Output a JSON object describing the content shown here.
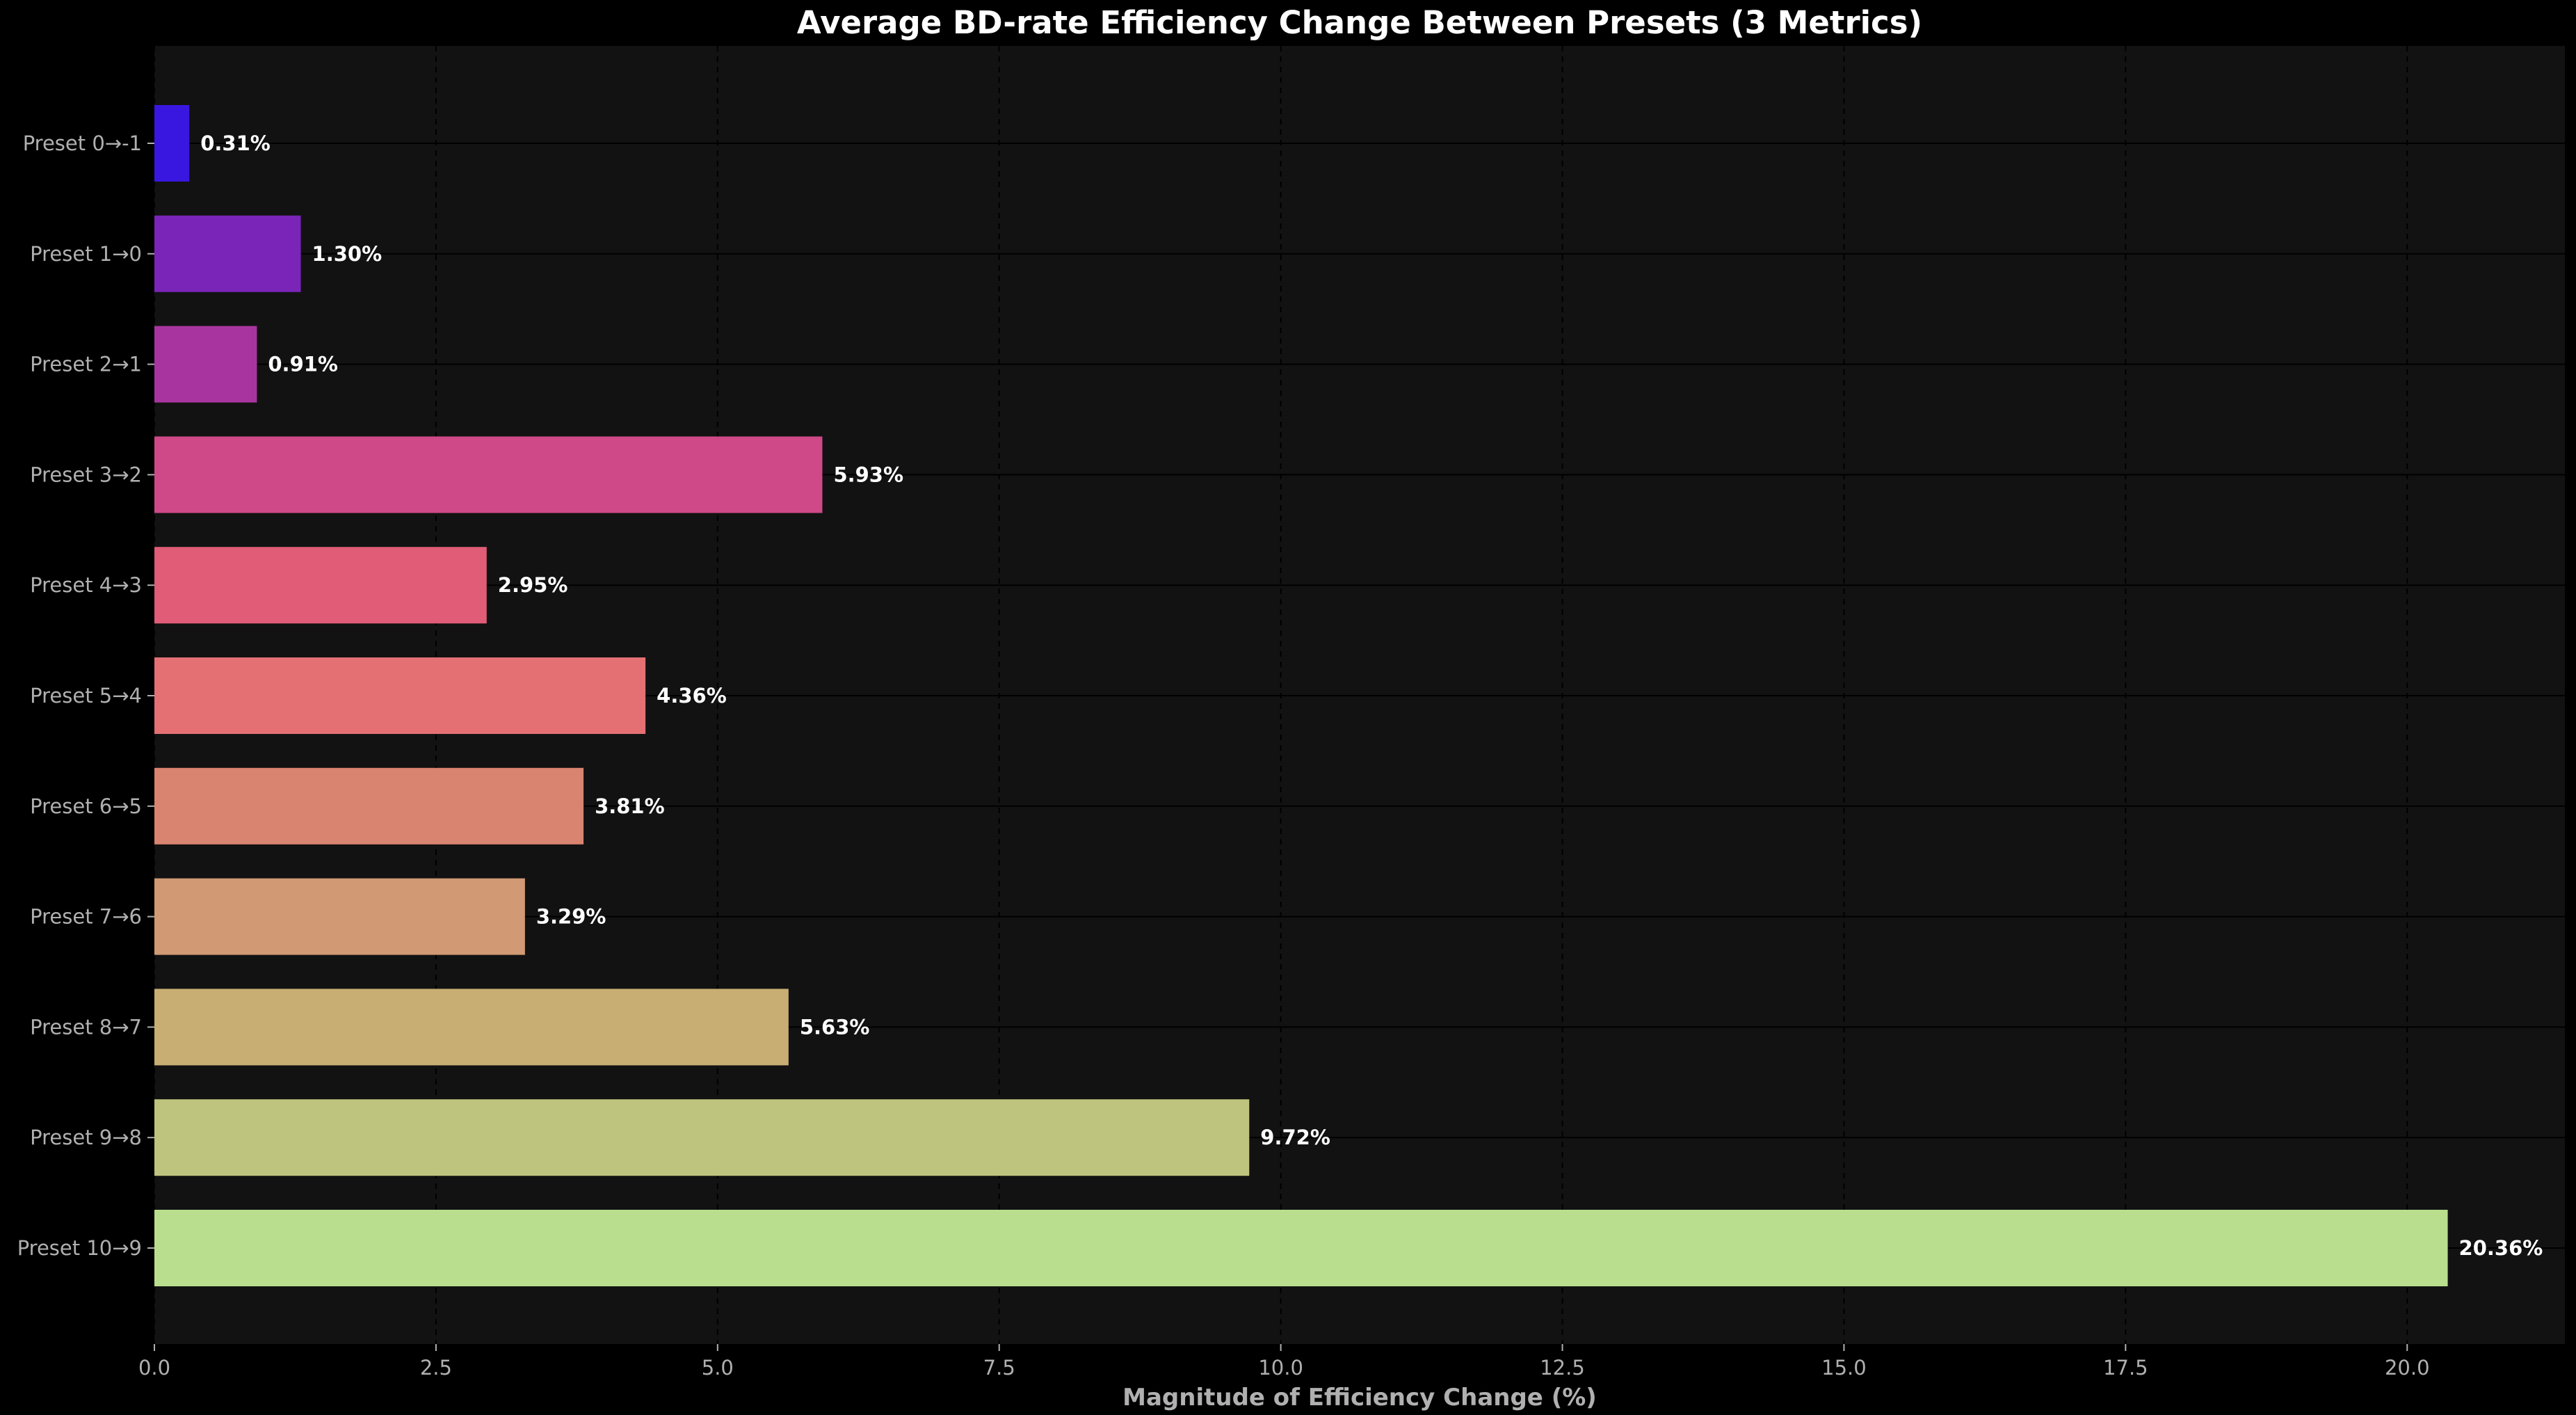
{
  "chart_data": {
    "type": "bar",
    "orientation": "horizontal",
    "title": "Average BD-rate Efficiency Change Between Presets (3 Metrics)",
    "xlabel": "Magnitude of Efficiency Change (%)",
    "ylabel": "",
    "xlim": [
      0,
      21.4
    ],
    "xticks": [
      0.0,
      2.5,
      5.0,
      7.5,
      10.0,
      12.5,
      15.0,
      17.5,
      20.0
    ],
    "xtick_labels": [
      "0.0",
      "2.5",
      "5.0",
      "7.5",
      "10.0",
      "12.5",
      "15.0",
      "17.5",
      "20.0"
    ],
    "categories": [
      "Preset 0→-1",
      "Preset 1→0",
      "Preset 2→1",
      "Preset 3→2",
      "Preset 4→3",
      "Preset 5→4",
      "Preset 6→5",
      "Preset 7→6",
      "Preset 8→7",
      "Preset 9→8",
      "Preset 10→9"
    ],
    "values": [
      0.31,
      1.3,
      0.91,
      5.93,
      2.95,
      4.36,
      3.81,
      3.29,
      5.63,
      9.72,
      20.36
    ],
    "value_labels": [
      "0.31%",
      "1.30%",
      "0.91%",
      "5.93%",
      "2.95%",
      "4.36%",
      "3.81%",
      "3.29%",
      "5.63%",
      "9.72%",
      "20.36%"
    ],
    "colors": [
      "#3a17e0",
      "#7a24b8",
      "#a8359f",
      "#cf4989",
      "#e05c77",
      "#e47074",
      "#d98470",
      "#d19a74",
      "#c8ae73",
      "#bec47d",
      "#b9df8e"
    ],
    "grid": true,
    "legend": "none",
    "background": "#121212",
    "figure_background": "#000000"
  }
}
